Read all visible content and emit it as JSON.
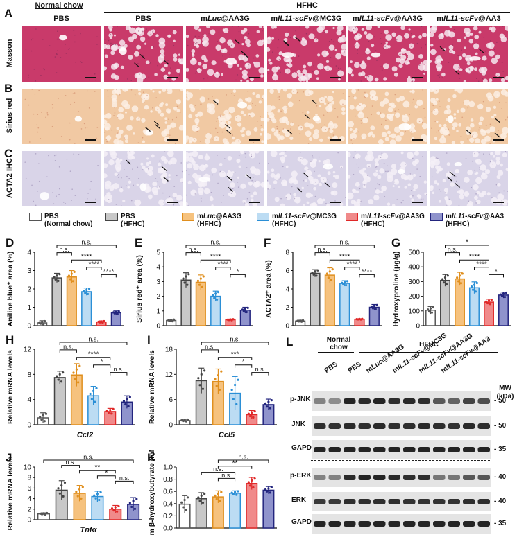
{
  "colors": {
    "pbs_normal": "#ffffff",
    "pbs_hfhc": "#c8c8c8",
    "mluc": "#f6c27e",
    "mc3g": "#bcdcf3",
    "aa3g": "#f08a8a",
    "aa3": "#8f93cc",
    "stroke_pbs_normal": "#555555",
    "stroke_pbs_hfhc": "#444444",
    "stroke_mluc": "#e08f1e",
    "stroke_mc3g": "#2b8fd6",
    "stroke_aa3g": "#e02828",
    "stroke_aa3": "#23257e",
    "masson": "#c93a6a",
    "sirius": "#f1c9a3",
    "ihc": "#d9d4e8"
  },
  "panels": {
    "A": "A",
    "B": "B",
    "C": "C",
    "D": "D",
    "E": "E",
    "F": "F",
    "G": "G",
    "H": "H",
    "I": "I",
    "J": "J",
    "K": "K",
    "L": "L"
  },
  "histology": {
    "group_normal": "Normal chow",
    "group_hfhc": "HFHC",
    "columns": [
      {
        "pre": "PBS",
        "it": "",
        "post": ""
      },
      {
        "pre": "PBS",
        "it": "",
        "post": ""
      },
      {
        "pre": "m",
        "it": "Luc",
        "post": "@AA3G"
      },
      {
        "pre": "m",
        "it": "IL11-scFv",
        "post": "@MC3G"
      },
      {
        "pre": "m",
        "it": "IL11-scFv",
        "post": "@AA3G"
      },
      {
        "pre": "m",
        "it": "IL11-scFv",
        "post": "@AA3"
      }
    ],
    "rows": [
      "Masson",
      "Sirius red",
      "ACTA2 IHC"
    ]
  },
  "legend": [
    {
      "l1_pre": "PBS",
      "l1_it": "",
      "l1_post": "",
      "l2": "(Normal chow)"
    },
    {
      "l1_pre": "PBS",
      "l1_it": "",
      "l1_post": "",
      "l2": "(HFHC)"
    },
    {
      "l1_pre": "m",
      "l1_it": "Luc",
      "l1_post": "@AA3G",
      "l2": "(HFHC)"
    },
    {
      "l1_pre": "m",
      "l1_it": "IL11-scFv",
      "l1_post": "@MC3G",
      "l2": "(HFHC)"
    },
    {
      "l1_pre": "m",
      "l1_it": "IL11-scFv",
      "l1_post": "@AA3G",
      "l2": "(HFHC)"
    },
    {
      "l1_pre": "m",
      "l1_it": "IL11-scFv",
      "l1_post": "@AA3",
      "l2": "(HFHC)"
    }
  ],
  "chart_data": [
    {
      "id": "D",
      "type": "bar",
      "title": "",
      "ylabel": "Aniline blue⁺ area (%)",
      "xlabel": "",
      "categories": [
        "PBS (Normal chow)",
        "PBS (HFHC)",
        "mLuc@AA3G",
        "mIL11-scFv@MC3G",
        "mIL11-scFv@AA3G",
        "mIL11-scFv@AA3"
      ],
      "values": [
        0.15,
        2.6,
        2.65,
        1.85,
        0.2,
        0.7
      ],
      "errors": [
        0.12,
        0.25,
        0.35,
        0.2,
        0.06,
        0.1
      ],
      "ylim": [
        0,
        4
      ],
      "yticks": [
        0,
        1,
        2,
        3,
        4
      ],
      "sig": [
        {
          "a": 1,
          "b": 5,
          "t": "n.s."
        },
        {
          "a": 1,
          "b": 2,
          "t": "n.s."
        },
        {
          "a": 2,
          "b": 4,
          "t": "****"
        },
        {
          "a": 3,
          "b": 4,
          "t": "****"
        },
        {
          "a": 4,
          "b": 5,
          "t": "****"
        }
      ]
    },
    {
      "id": "E",
      "type": "bar",
      "title": "",
      "ylabel": "Sirius red⁺ area (%)",
      "xlabel": "",
      "categories": [
        "PBS (Normal chow)",
        "PBS (HFHC)",
        "mLuc@AA3G",
        "mIL11-scFv@MC3G",
        "mIL11-scFv@AA3G",
        "mIL11-scFv@AA3"
      ],
      "values": [
        0.35,
        3.1,
        2.95,
        2.0,
        0.4,
        1.05
      ],
      "errors": [
        0.08,
        0.5,
        0.5,
        0.35,
        0.05,
        0.2
      ],
      "ylim": [
        0,
        5
      ],
      "yticks": [
        0,
        1,
        2,
        3,
        4,
        5
      ],
      "sig": [
        {
          "a": 1,
          "b": 5,
          "t": "n.s."
        },
        {
          "a": 1,
          "b": 2,
          "t": "n.s."
        },
        {
          "a": 2,
          "b": 4,
          "t": "****"
        },
        {
          "a": 3,
          "b": 4,
          "t": "****"
        },
        {
          "a": 4,
          "b": 5,
          "t": "*"
        }
      ]
    },
    {
      "id": "F",
      "type": "bar",
      "title": "",
      "ylabel": "ACTA2⁺ area (%)",
      "xlabel": "",
      "categories": [
        "PBS (Normal chow)",
        "PBS (HFHC)",
        "mLuc@AA3G",
        "mIL11-scFv@MC3G",
        "mIL11-scFv@AA3G",
        "mIL11-scFv@AA3"
      ],
      "values": [
        0.5,
        5.7,
        5.5,
        4.6,
        0.7,
        2.0
      ],
      "errors": [
        0.1,
        0.4,
        0.8,
        0.3,
        0.05,
        0.3
      ],
      "ylim": [
        0,
        8
      ],
      "yticks": [
        0,
        2,
        4,
        6,
        8
      ],
      "sig": [
        {
          "a": 1,
          "b": 5,
          "t": "n.s."
        },
        {
          "a": 1,
          "b": 2,
          "t": "n.s."
        },
        {
          "a": 2,
          "b": 4,
          "t": "****"
        },
        {
          "a": 3,
          "b": 4,
          "t": "****"
        },
        {
          "a": 4,
          "b": 5,
          "t": "****"
        }
      ]
    },
    {
      "id": "G",
      "type": "bar",
      "title": "",
      "ylabel": "Hydroxyproline (μg/g)",
      "xlabel": "",
      "categories": [
        "PBS (Normal chow)",
        "PBS (HFHC)",
        "mLuc@AA3G",
        "mIL11-scFv@MC3G",
        "mIL11-scFv@AA3G",
        "mIL11-scFv@AA3"
      ],
      "values": [
        105,
        308,
        318,
        258,
        160,
        208
      ],
      "errors": [
        25,
        40,
        45,
        40,
        20,
        20
      ],
      "ylim": [
        0,
        500
      ],
      "yticks": [
        0,
        100,
        200,
        300,
        400,
        500
      ],
      "sig": [
        {
          "a": 1,
          "b": 4,
          "t": "*"
        },
        {
          "a": 1,
          "b": 2,
          "t": "n.s."
        },
        {
          "a": 2,
          "b": 4,
          "t": "****"
        },
        {
          "a": 3,
          "b": 4,
          "t": "****"
        },
        {
          "a": 4,
          "b": 5,
          "t": "*"
        }
      ]
    },
    {
      "id": "H",
      "type": "bar",
      "title": "",
      "ylabel": "Relative mRNA levels",
      "xlabel": "Ccl2",
      "categories": [
        "PBS (Normal chow)",
        "PBS (HFHC)",
        "mLuc@AA3G",
        "mIL11-scFv@MC3G",
        "mIL11-scFv@AA3G",
        "mIL11-scFv@AA3"
      ],
      "values": [
        1.1,
        7.5,
        7.9,
        4.6,
        2.1,
        3.6
      ],
      "errors": [
        0.8,
        1.0,
        1.8,
        1.5,
        0.5,
        1.0
      ],
      "ylim": [
        0,
        12
      ],
      "yticks": [
        0,
        4,
        8,
        12
      ],
      "sig": [
        {
          "a": 1,
          "b": 5,
          "t": "n.s."
        },
        {
          "a": 1,
          "b": 2,
          "t": "n.s."
        },
        {
          "a": 2,
          "b": 4,
          "t": "****"
        },
        {
          "a": 3,
          "b": 4,
          "t": "*"
        },
        {
          "a": 4,
          "b": 5,
          "t": "n.s."
        }
      ]
    },
    {
      "id": "I",
      "type": "bar",
      "title": "",
      "ylabel": "Relative mRNA levels",
      "xlabel": "Ccl5",
      "categories": [
        "PBS (Normal chow)",
        "PBS (HFHC)",
        "mLuc@AA3G",
        "mIL11-scFv@MC3G",
        "mIL11-scFv@AA3G",
        "mIL11-scFv@AA3"
      ],
      "values": [
        1.0,
        10.5,
        10.3,
        7.5,
        2.4,
        4.8
      ],
      "errors": [
        0.3,
        3.0,
        3.0,
        4.0,
        1.0,
        1.3
      ],
      "ylim": [
        0,
        18
      ],
      "yticks": [
        0,
        6,
        12,
        18
      ],
      "sig": [
        {
          "a": 1,
          "b": 5,
          "t": "n.s."
        },
        {
          "a": 1,
          "b": 2,
          "t": "n.s."
        },
        {
          "a": 2,
          "b": 4,
          "t": "***"
        },
        {
          "a": 3,
          "b": 4,
          "t": "*"
        },
        {
          "a": 4,
          "b": 5,
          "t": "n.s."
        }
      ]
    },
    {
      "id": "J",
      "type": "bar",
      "title": "",
      "ylabel": "Relative mRNA levels",
      "xlabel": "Tnfα",
      "categories": [
        "PBS (Normal chow)",
        "PBS (HFHC)",
        "mLuc@AA3G",
        "mIL11-scFv@MC3G",
        "mIL11-scFv@AA3G",
        "mIL11-scFv@AA3"
      ],
      "values": [
        1.1,
        5.6,
        5.0,
        4.4,
        2.0,
        2.9
      ],
      "errors": [
        0.2,
        1.8,
        1.5,
        1.0,
        0.7,
        1.3
      ],
      "ylim": [
        0,
        10
      ],
      "yticks": [
        0,
        2,
        4,
        6,
        8,
        10
      ],
      "sig": [
        {
          "a": 0,
          "b": 5,
          "t": "n.s."
        },
        {
          "a": 1,
          "b": 2,
          "t": "n.s."
        },
        {
          "a": 2,
          "b": 4,
          "t": "**"
        },
        {
          "a": 3,
          "b": 4,
          "t": "*"
        },
        {
          "a": 4,
          "b": 5,
          "t": "n.s."
        }
      ]
    },
    {
      "id": "K",
      "type": "bar",
      "title": "",
      "ylabel": "Serum β-hydroxybutyrate (mM)",
      "xlabel": "",
      "categories": [
        "PBS (Normal chow)",
        "PBS (HFHC)",
        "mLuc@AA3G",
        "mIL11-scFv@MC3G",
        "mIL11-scFv@AA3G",
        "mIL11-scFv@AA3"
      ],
      "values": [
        0.39,
        0.48,
        0.51,
        0.57,
        0.73,
        0.62
      ],
      "errors": [
        0.14,
        0.1,
        0.1,
        0.04,
        0.1,
        0.06
      ],
      "ylim": [
        0,
        1.0
      ],
      "yticks": [
        0.0,
        0.2,
        0.4,
        0.6,
        0.8,
        1.0
      ],
      "sig": [
        {
          "a": 2,
          "b": 5,
          "t": "n.s."
        },
        {
          "a": 2,
          "b": 4,
          "t": "**"
        },
        {
          "a": 1,
          "b": 3,
          "t": "n.s."
        },
        {
          "a": 2,
          "b": 3,
          "t": "n.s."
        }
      ]
    }
  ],
  "western": {
    "col_normal": "Normal chow",
    "col_hfhc": "HFHC",
    "lanes": [
      {
        "pre": "PBS",
        "it": "",
        "post": ""
      },
      {
        "pre": "PBS",
        "it": "",
        "post": ""
      },
      {
        "pre": "m",
        "it": "Luc",
        "post": "@AA3G"
      },
      {
        "pre": "m",
        "it": "IL11-scFv",
        "post": "@MC3G"
      },
      {
        "pre": "m",
        "it": "IL11-scFv",
        "post": "@AA3G"
      },
      {
        "pre": "m",
        "it": "IL11-scFv",
        "post": "@AA3"
      }
    ],
    "mw_title": "MW",
    "mw_unit": "(kDa)",
    "blots": [
      {
        "label": "p-JNK",
        "mw": "- 50"
      },
      {
        "label": "JNK",
        "mw": "- 50"
      },
      {
        "label": "GAPDH",
        "mw": "- 35"
      },
      {
        "label": "p-ERK",
        "mw": "- 40"
      },
      {
        "label": "ERK",
        "mw": "- 40"
      },
      {
        "label": "GAPDH",
        "mw": "- 35"
      }
    ]
  }
}
